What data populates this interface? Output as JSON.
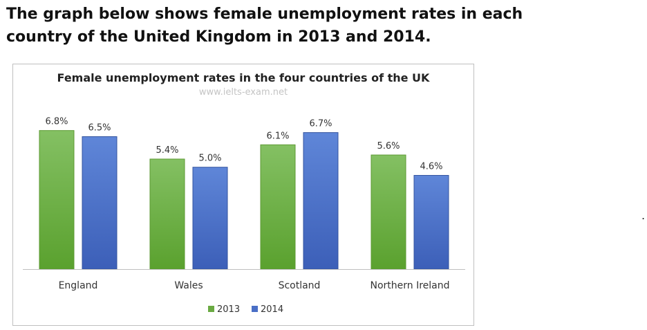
{
  "heading": {
    "line1": "The graph below shows female unemployment rates in each",
    "line2": "country of the United Kingdom in 2013 and 2014."
  },
  "stray_mark": ".",
  "chart_data": {
    "type": "bar",
    "title": "Female unemployment rates in the four countries of the UK",
    "watermark": "www.ielts-exam.net",
    "categories": [
      "England",
      "Wales",
      "Scotland",
      "Northern Ireland"
    ],
    "series": [
      {
        "name": "2013",
        "values": [
          6.8,
          5.4,
          6.1,
          5.6
        ],
        "labels": [
          "6.8%",
          "5.4%",
          "6.1%",
          "5.6%"
        ],
        "color": "#6aaa42"
      },
      {
        "name": "2014",
        "values": [
          6.5,
          5.0,
          6.7,
          4.6
        ],
        "labels": [
          "6.5%",
          "5.0%",
          "6.7%",
          "4.6%"
        ],
        "color": "#4a6fc6"
      }
    ],
    "ylim": [
      0,
      7.4
    ],
    "grid": false,
    "legend_position": "bottom",
    "xlabel": "",
    "ylabel": ""
  }
}
